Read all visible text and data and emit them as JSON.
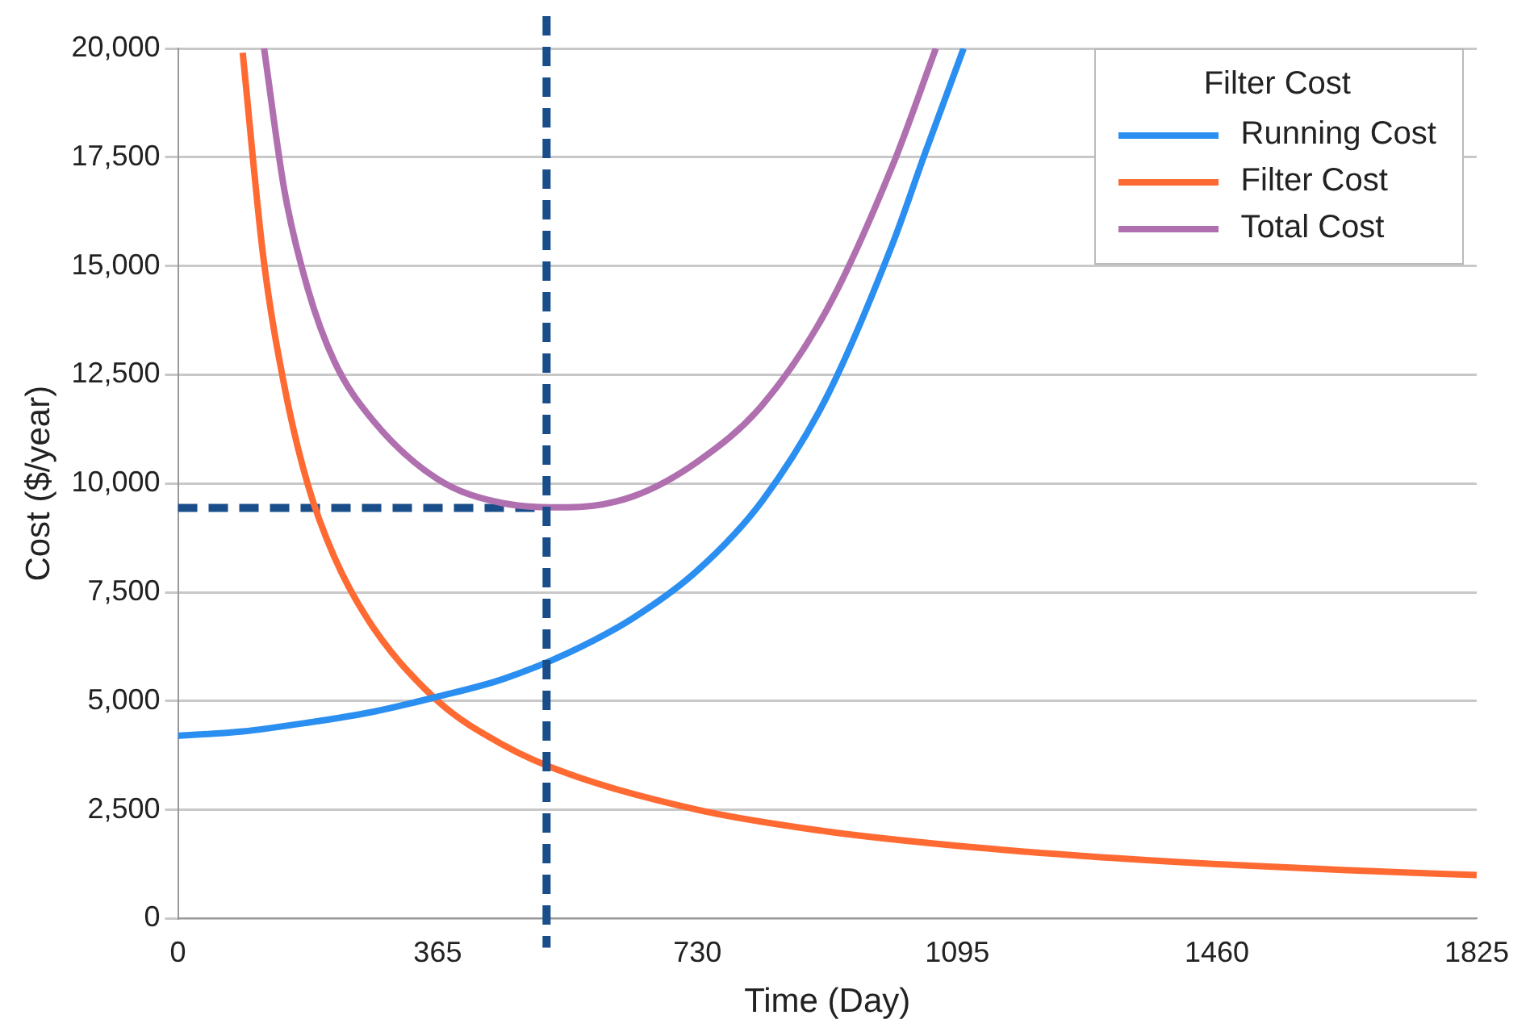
{
  "chart_data": {
    "type": "line",
    "xlabel": "Time (Day)",
    "ylabel": "Cost ($/year)",
    "legend_title": "Filter Cost",
    "legend": "top right",
    "grid": "y",
    "line_style": "solid",
    "marker": "none",
    "xlim": [
      0,
      1825
    ],
    "xticks": [
      0,
      365,
      730,
      1095,
      1460,
      1825
    ],
    "ylim": [
      0,
      20000
    ],
    "yticks": [
      0,
      {
        "value": 2500,
        "label": "2,500"
      },
      {
        "value": 5000,
        "label": "5,000"
      },
      {
        "value": 7500,
        "label": "7,500"
      },
      {
        "value": 10000,
        "label": "10,000"
      },
      {
        "value": 12500,
        "label": "12,500"
      },
      {
        "value": 15000,
        "label": "15,000"
      },
      {
        "value": 17500,
        "label": "17,500"
      },
      {
        "value": 20000,
        "label": "20,000"
      }
    ],
    "series": [
      {
        "name": "Running Cost",
        "color": "#2a8ff0",
        "x": [
          0,
          91,
          182,
          274,
          365,
          456,
          548,
          639,
          730,
          821,
          912,
          1004,
          1050,
          1104
        ],
        "values": [
          4200,
          4300,
          4500,
          4750,
          5100,
          5500,
          6100,
          6900,
          8000,
          9600,
          12000,
          15500,
          17600,
          20000
        ]
      },
      {
        "name": "Filter Cost",
        "color": "#ff6a33",
        "x": [
          91,
          120,
          150,
          182,
          220,
          274,
          365,
          456,
          548,
          730,
          912,
          1095,
          1278,
          1460,
          1643,
          1825
        ],
        "values": [
          19900,
          15200,
          12200,
          10000,
          8300,
          6700,
          5000,
          4000,
          3330,
          2500,
          2000,
          1670,
          1430,
          1250,
          1110,
          1000
        ]
      },
      {
        "name": "Total Cost",
        "color": "#b070b0",
        "x": [
          121,
          150,
          182,
          220,
          274,
          365,
          456,
          548,
          639,
          730,
          821,
          912,
          1004,
          1065
        ],
        "values": [
          20000,
          16700,
          14500,
          12800,
          11450,
          10100,
          9550,
          9450,
          9700,
          10500,
          11800,
          14000,
          17300,
          20000
        ]
      },
      {
        "color": "#1a4e8a",
        "line_style": "dashed",
        "x": [
          0,
          518
        ],
        "values": [
          9440,
          9440
        ]
      }
    ],
    "ref_lines": [
      {
        "axis": "x",
        "value": 518,
        "color": "#1a4e8a",
        "line_style": "dashed"
      }
    ]
  }
}
